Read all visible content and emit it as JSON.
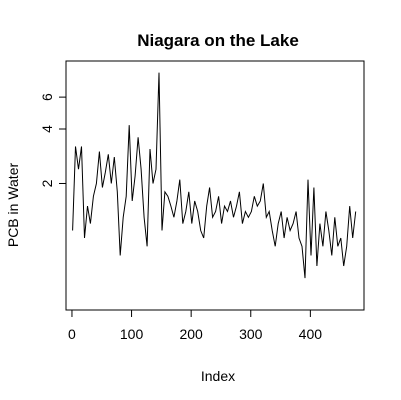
{
  "chart_data": {
    "type": "line",
    "title": "Niagara on the Lake",
    "xlabel": "Index",
    "ylabel": "PCB in Water",
    "y_scale": "log",
    "xlim": [
      -10,
      490
    ],
    "ylim": [
      0.4,
      9.5
    ],
    "x_ticks": [
      0,
      100,
      200,
      300,
      400
    ],
    "x_tick_labels": [
      "0",
      "100",
      "200",
      "300",
      "400"
    ],
    "y_ticks": [
      2,
      4,
      6
    ],
    "y_tick_labels": [
      "2",
      "4",
      "6"
    ],
    "series": [
      {
        "x": [
          1,
          6,
          11,
          16,
          21,
          26,
          31,
          36,
          41,
          46,
          51,
          56,
          61,
          66,
          71,
          76,
          81,
          86,
          91,
          96,
          101,
          106,
          111,
          116,
          121,
          126,
          131,
          136,
          141,
          146,
          151,
          156,
          161,
          166,
          171,
          176,
          181,
          186,
          191,
          196,
          201,
          206,
          211,
          216,
          221,
          226,
          231,
          236,
          241,
          246,
          251,
          256,
          261,
          266,
          271,
          276,
          281,
          286,
          291,
          296,
          301,
          306,
          311,
          316,
          321,
          326,
          331,
          336,
          341,
          346,
          351,
          356,
          361,
          366,
          371,
          376,
          381,
          386,
          391,
          396,
          401,
          406,
          411,
          416,
          421,
          426,
          431,
          436,
          441,
          446,
          451,
          456,
          461,
          466,
          471,
          476
        ],
        "values": [
          1.1,
          3.2,
          2.4,
          3.2,
          1.0,
          1.5,
          1.2,
          1.7,
          2.0,
          3.0,
          1.9,
          2.3,
          2.9,
          2.0,
          2.8,
          1.8,
          0.8,
          1.3,
          1.7,
          4.2,
          1.6,
          2.2,
          3.6,
          2.4,
          1.3,
          0.9,
          3.1,
          2.0,
          2.4,
          8.2,
          1.1,
          1.8,
          1.7,
          1.5,
          1.3,
          1.6,
          2.1,
          1.2,
          1.4,
          1.8,
          1.2,
          1.6,
          1.4,
          1.1,
          1.0,
          1.5,
          1.9,
          1.3,
          1.4,
          1.7,
          1.2,
          1.5,
          1.4,
          1.6,
          1.3,
          1.5,
          1.8,
          1.2,
          1.4,
          1.3,
          1.4,
          1.7,
          1.5,
          1.6,
          2.0,
          1.3,
          1.4,
          1.1,
          0.9,
          1.2,
          1.4,
          1.0,
          1.3,
          1.1,
          1.2,
          1.4,
          1.0,
          0.9,
          0.6,
          2.1,
          0.8,
          1.9,
          0.7,
          1.2,
          0.9,
          1.4,
          1.1,
          0.8,
          1.3,
          0.9,
          1.0,
          0.7,
          0.9,
          1.5,
          1.0,
          1.4
        ]
      }
    ]
  }
}
